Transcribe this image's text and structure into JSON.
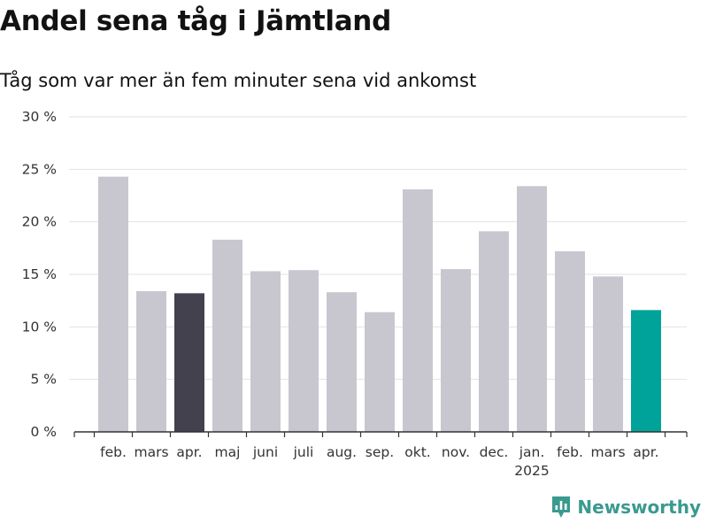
{
  "header": {
    "title": "Andel sena tåg i Jämtland",
    "subtitle": "Tåg som var mer än fem minuter sena vid ankomst"
  },
  "chart_data": {
    "type": "bar",
    "categories": [
      "feb.",
      "mars",
      "apr.",
      "maj",
      "juni",
      "juli",
      "aug.",
      "sep.",
      "okt.",
      "nov.",
      "dec.",
      "jan.",
      "feb.",
      "mars",
      "apr."
    ],
    "year_labels": [
      {
        "index": 11,
        "label": "2025"
      }
    ],
    "values": [
      24.3,
      13.4,
      13.2,
      18.3,
      15.3,
      15.4,
      13.3,
      11.4,
      23.1,
      15.5,
      19.1,
      23.4,
      17.2,
      14.8,
      11.6
    ],
    "highlight": [
      {
        "index": 2,
        "color": "#43414e"
      },
      {
        "index": 14,
        "color": "#00a39a"
      }
    ],
    "bar_color": "#c8c7d0",
    "ylim": [
      0,
      30
    ],
    "yticks": [
      0,
      5,
      10,
      15,
      20,
      25,
      30
    ],
    "ytick_labels": [
      "0 %",
      "5 %",
      "10 %",
      "15 %",
      "20 %",
      "25 %",
      "30 %"
    ],
    "grid": true
  },
  "brand": {
    "name": "Newsworthy",
    "color": "#3a9a8f",
    "icon": "newsworthy-logo-icon"
  }
}
